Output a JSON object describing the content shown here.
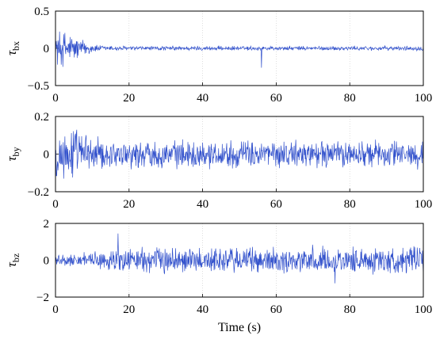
{
  "chart_data": [
    {
      "type": "line",
      "ylabel_symbol": "τ",
      "ylabel_subscript": "bx",
      "xlim": [
        0,
        100
      ],
      "ylim": [
        -0.5,
        0.5
      ],
      "xticks": [
        "0",
        "20",
        "40",
        "60",
        "80",
        "100"
      ],
      "yticks": [
        "0.5",
        "0",
        "−0.5"
      ],
      "ytick_values": [
        0.5,
        0,
        -0.5
      ],
      "grid": true,
      "series": [
        {
          "color": "#3352cc",
          "envelope": [
            {
              "x": 0,
              "amp": 0.28
            },
            {
              "x": 2,
              "amp": 0.3
            },
            {
              "x": 5,
              "amp": 0.22
            },
            {
              "x": 8,
              "amp": 0.12
            },
            {
              "x": 12,
              "amp": 0.05
            },
            {
              "x": 20,
              "amp": 0.035
            },
            {
              "x": 100,
              "amp": 0.035
            }
          ],
          "spikes": [
            {
              "x": 56,
              "y": -0.26
            }
          ]
        }
      ]
    },
    {
      "type": "line",
      "ylabel_symbol": "τ",
      "ylabel_subscript": "by",
      "xlim": [
        0,
        100
      ],
      "ylim": [
        -0.2,
        0.2
      ],
      "xticks": [
        "0",
        "20",
        "40",
        "60",
        "80",
        "100"
      ],
      "yticks": [
        "0.2",
        "0",
        "−0.2"
      ],
      "ytick_values": [
        0.2,
        0,
        -0.2
      ],
      "grid": true,
      "series": [
        {
          "color": "#3352cc",
          "envelope": [
            {
              "x": 0,
              "amp": 0.17
            },
            {
              "x": 5,
              "amp": 0.16
            },
            {
              "x": 10,
              "amp": 0.11
            },
            {
              "x": 15,
              "amp": 0.085
            },
            {
              "x": 100,
              "amp": 0.085
            }
          ],
          "spikes": []
        }
      ]
    },
    {
      "type": "line",
      "ylabel_symbol": "τ",
      "ylabel_subscript": "bz",
      "xlim": [
        0,
        100
      ],
      "ylim": [
        -2,
        2
      ],
      "xticks": [
        "0",
        "20",
        "40",
        "60",
        "80",
        "100"
      ],
      "xlabel": "Time (s)",
      "yticks": [
        "2",
        "0",
        "−2"
      ],
      "ytick_values": [
        2,
        0,
        -2
      ],
      "grid": true,
      "series": [
        {
          "color": "#3352cc",
          "envelope": [
            {
              "x": 0,
              "amp": 0.35
            },
            {
              "x": 10,
              "amp": 0.5
            },
            {
              "x": 20,
              "amp": 0.85
            },
            {
              "x": 100,
              "amp": 0.85
            }
          ],
          "spikes": [
            {
              "x": 17,
              "y": 1.45
            },
            {
              "x": 76,
              "y": -1.25
            }
          ]
        }
      ]
    }
  ]
}
